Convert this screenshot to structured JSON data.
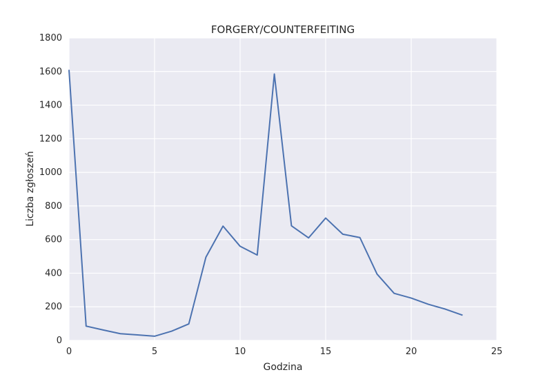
{
  "chart_data": {
    "type": "line",
    "title": "FORGERY/COUNTERFEITING",
    "xlabel": "Godzina",
    "ylabel": "Liczba zgłoszeń",
    "xlim": [
      0,
      25
    ],
    "ylim": [
      0,
      1800
    ],
    "xticks": [
      0,
      5,
      10,
      15,
      20,
      25
    ],
    "yticks": [
      0,
      200,
      400,
      600,
      800,
      1000,
      1200,
      1400,
      1600,
      1800
    ],
    "grid": true,
    "colors": {
      "background": "#eaeaf2",
      "grid": "#ffffff",
      "line": "#4c72b0"
    },
    "series": [
      {
        "x": [
          0,
          1,
          2,
          3,
          4,
          5,
          6,
          7,
          8,
          9,
          10,
          11,
          12,
          13,
          14,
          15,
          16,
          17,
          18,
          19,
          20,
          21,
          22,
          23
        ],
        "values": [
          1610,
          85,
          62,
          40,
          33,
          25,
          55,
          98,
          495,
          680,
          560,
          508,
          1585,
          682,
          610,
          728,
          632,
          612,
          395,
          280,
          252,
          215,
          186,
          150
        ]
      }
    ]
  }
}
